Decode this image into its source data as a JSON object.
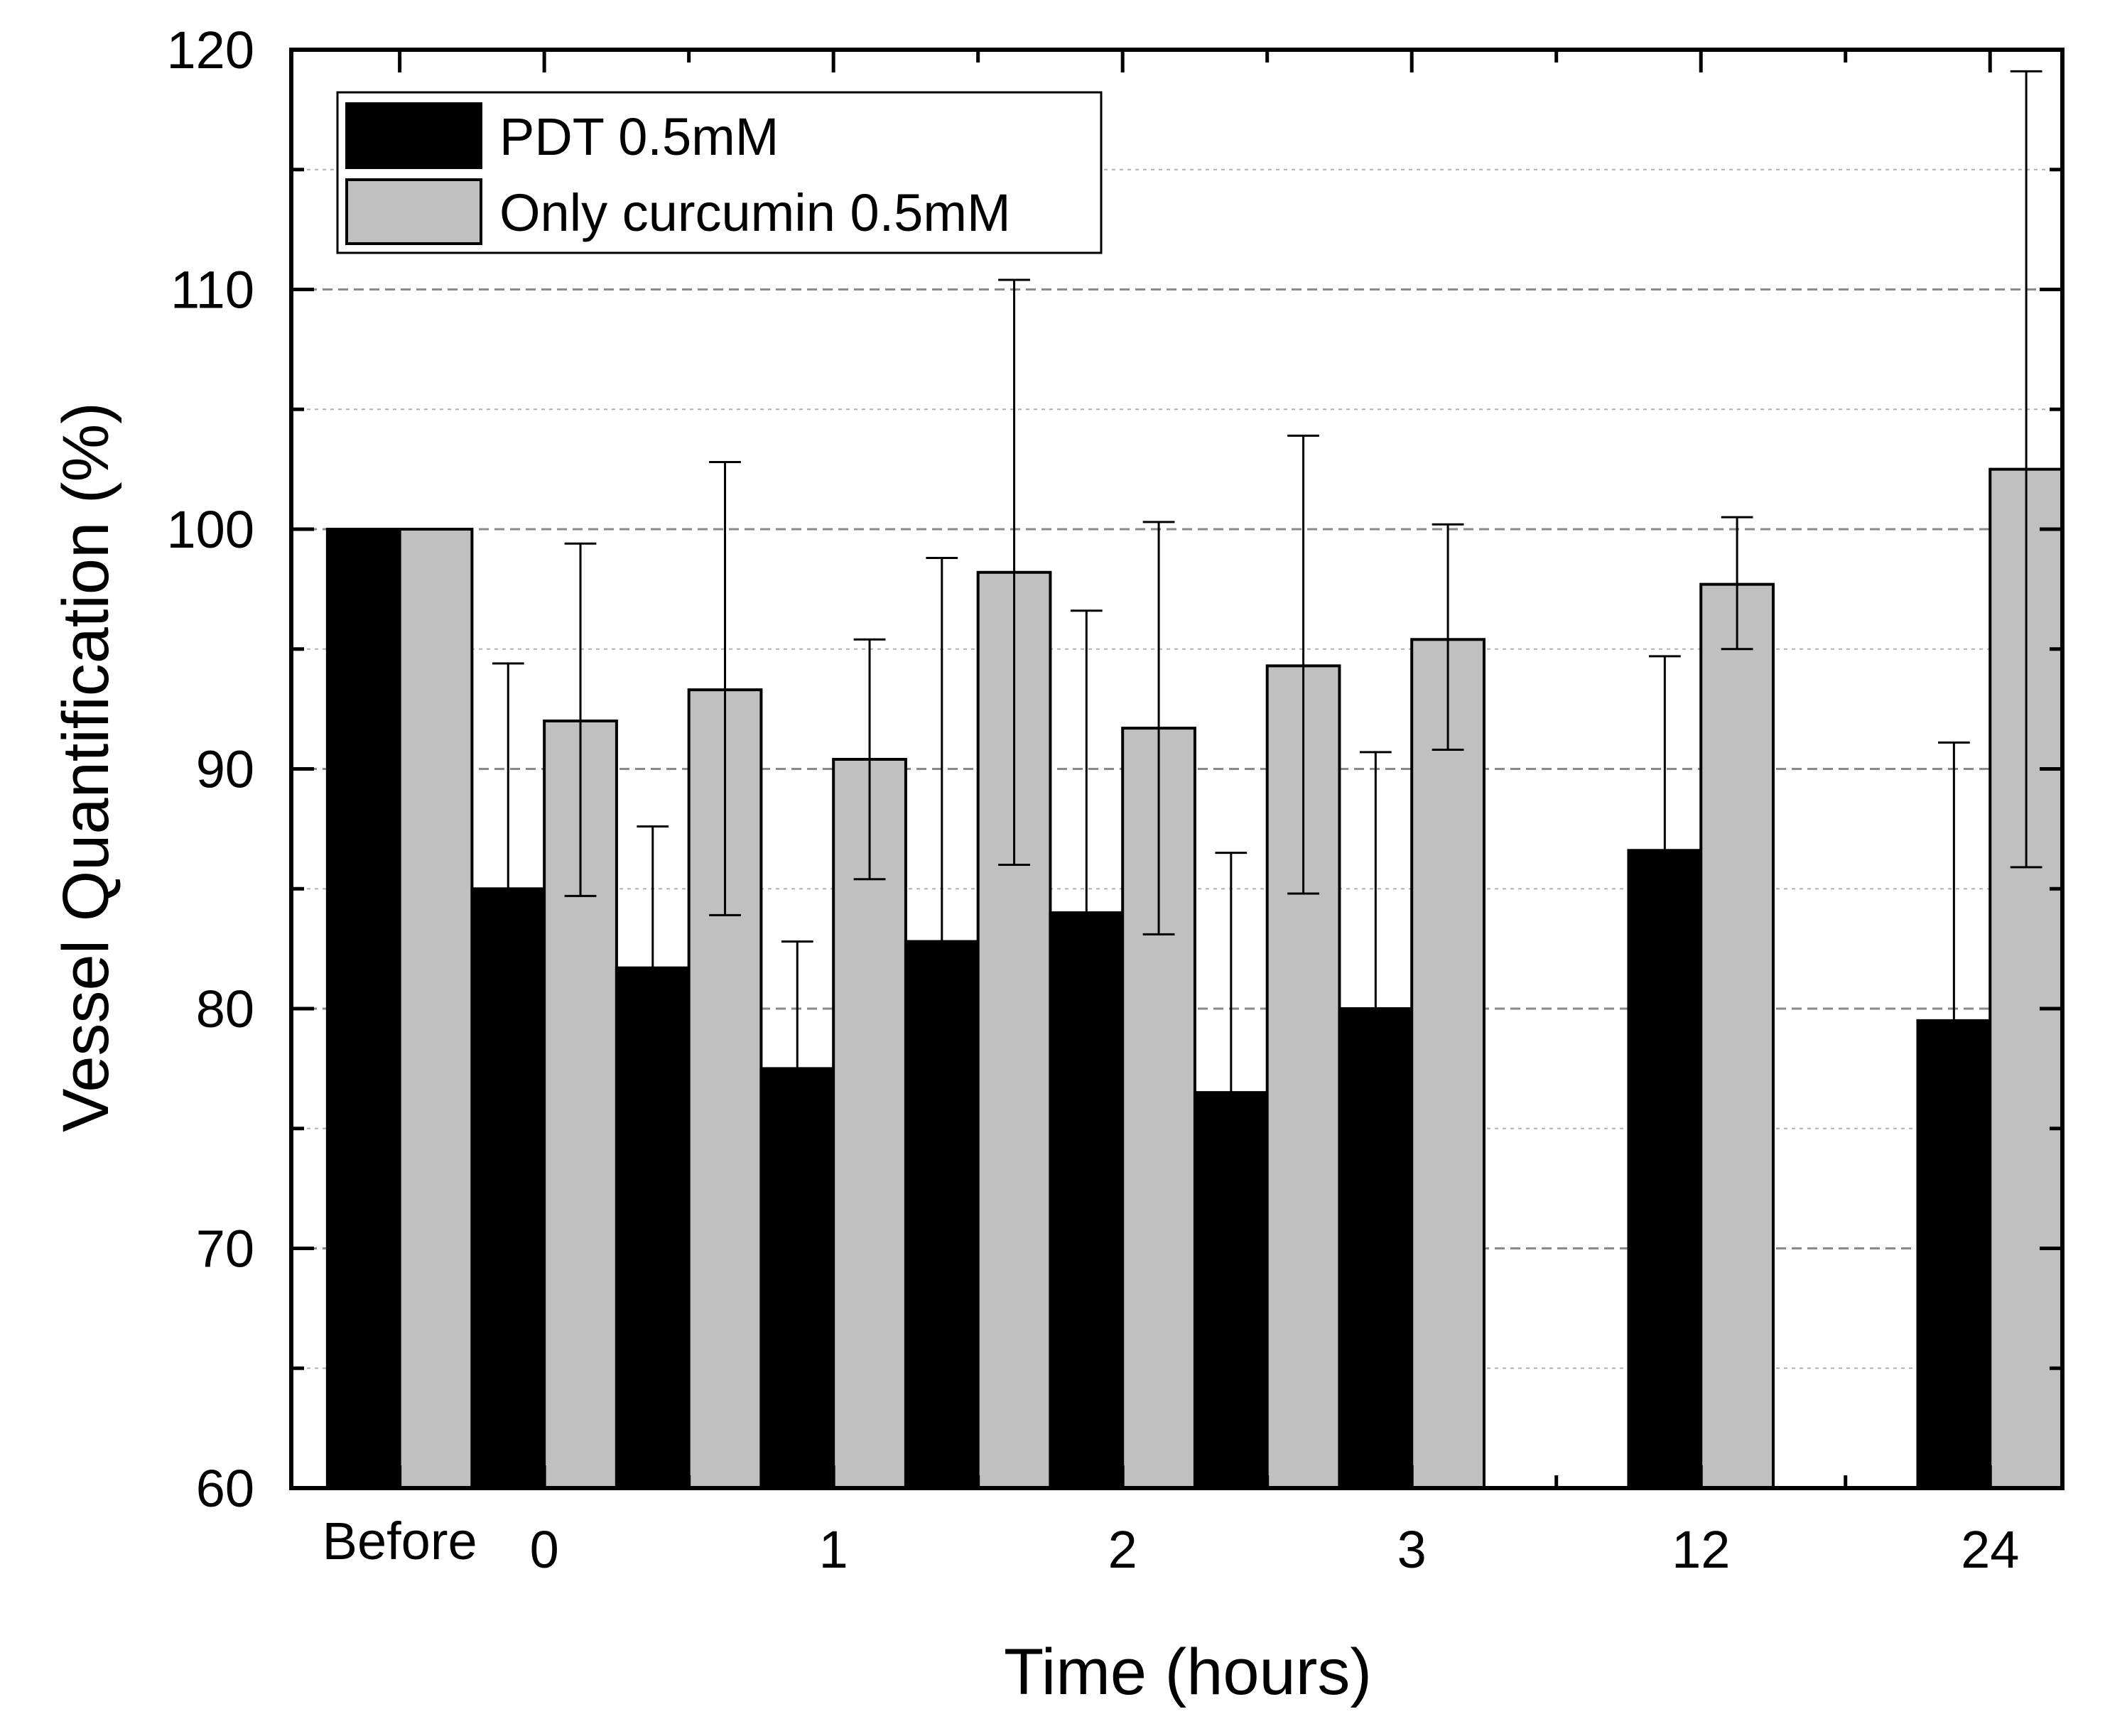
{
  "chart_data": {
    "type": "bar",
    "title": "",
    "xlabel": "Time (hours)",
    "ylabel": "Vessel Quantification (%)",
    "ylim": [
      60,
      120
    ],
    "yticks": [
      "60",
      "70",
      "80",
      "90",
      "100",
      "110",
      "120"
    ],
    "grid": "dashed horizontal at 5-unit intervals",
    "legend_position": "top-left",
    "x_group_labels": [
      "Before",
      "0",
      "1",
      "2",
      "3",
      "12",
      "24"
    ],
    "bar_slots": [
      {
        "x": 0,
        "series": "PDT 0.5mM",
        "value": 100.0
      },
      {
        "x": 1,
        "series": "Only curcumin 0.5mM",
        "value": 100.0
      },
      {
        "x": 2,
        "series": "PDT 0.5mM",
        "value": 85.0,
        "err_upper": 94.4
      },
      {
        "x": 3,
        "series": "Only curcumin 0.5mM",
        "value": 92.0,
        "err_upper": 99.4,
        "err_lower": 84.7
      },
      {
        "x": 4,
        "series": "PDT 0.5mM",
        "value": 81.7,
        "err_upper": 87.6
      },
      {
        "x": 5,
        "series": "Only curcumin 0.5mM",
        "value": 93.3,
        "err_upper": 102.8,
        "err_lower": 83.9
      },
      {
        "x": 6,
        "series": "PDT 0.5mM",
        "value": 77.5,
        "err_upper": 82.8
      },
      {
        "x": 7,
        "series": "Only curcumin 0.5mM",
        "value": 90.4,
        "err_upper": 95.4,
        "err_lower": 85.4
      },
      {
        "x": 8,
        "series": "PDT 0.5mM",
        "value": 82.8,
        "err_upper": 98.8
      },
      {
        "x": 9,
        "series": "Only curcumin 0.5mM",
        "value": 98.2,
        "err_upper": 110.4,
        "err_lower": 86.0
      },
      {
        "x": 10,
        "series": "PDT 0.5mM",
        "value": 84.0,
        "err_upper": 96.6
      },
      {
        "x": 11,
        "series": "Only curcumin 0.5mM",
        "value": 91.7,
        "err_upper": 100.3,
        "err_lower": 83.1
      },
      {
        "x": 12,
        "series": "PDT 0.5mM",
        "value": 76.5,
        "err_upper": 86.5
      },
      {
        "x": 13,
        "series": "Only curcumin 0.5mM",
        "value": 94.3,
        "err_upper": 103.9,
        "err_lower": 84.8
      },
      {
        "x": 14,
        "series": "PDT 0.5mM",
        "value": 80.0,
        "err_upper": 90.7
      },
      {
        "x": 15,
        "series": "Only curcumin 0.5mM",
        "value": 95.4,
        "err_upper": 100.2,
        "err_lower": 90.8
      },
      {
        "x": 18,
        "series": "PDT 0.5mM",
        "value": 86.6,
        "err_upper": 94.7
      },
      {
        "x": 19,
        "series": "Only curcumin 0.5mM",
        "value": 97.7,
        "err_upper": 100.5,
        "err_lower": 95.0
      },
      {
        "x": 22,
        "series": "PDT 0.5mM",
        "value": 79.5,
        "err_upper": 91.1
      },
      {
        "x": 23,
        "series": "Only curcumin 0.5mM",
        "value": 102.5,
        "err_upper": 119.1,
        "err_lower": 85.9
      }
    ],
    "x_slot_range": [
      -1,
      23.5
    ],
    "x_label_positions": [
      0.5,
      2.5,
      6.5,
      10.5,
      14.5,
      18.5,
      22.5
    ],
    "x_major_ticks": [
      0.5,
      2.5,
      6.5,
      10.5,
      14.5,
      18.5,
      22.5
    ],
    "x_minor_ticks": [
      4.5,
      8.5,
      12.5,
      16.5,
      20.5
    ],
    "series": [
      {
        "name": "PDT 0.5mM",
        "color": "#000000"
      },
      {
        "name": "Only curcumin 0.5mM",
        "color": "#c0c0c0"
      }
    ]
  }
}
